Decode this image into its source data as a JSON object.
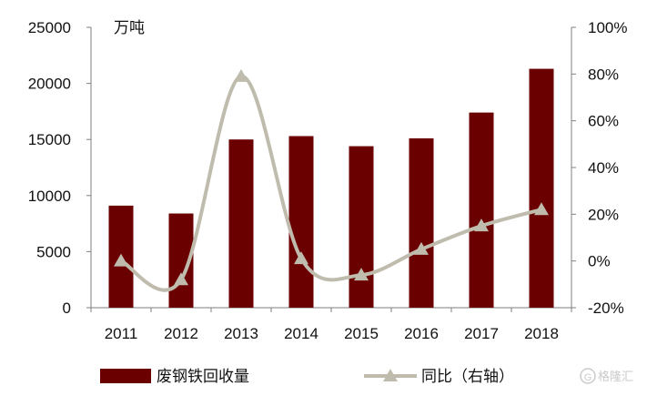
{
  "chart_data": {
    "type": "bar+line",
    "unit_label": "万吨",
    "categories": [
      "2011",
      "2012",
      "2013",
      "2014",
      "2015",
      "2016",
      "2017",
      "2018"
    ],
    "series": [
      {
        "name": "废钢铁回收量",
        "type": "bar",
        "axis": "left",
        "color": "#6b0000",
        "values": [
          9100,
          8400,
          15000,
          15300,
          14400,
          15100,
          17400,
          21300
        ]
      },
      {
        "name": "同比（右轴）",
        "type": "line",
        "axis": "right",
        "color": "#bfbcae",
        "marker": "triangle",
        "values": [
          0,
          -8,
          79,
          1,
          -6,
          5,
          15,
          22
        ]
      }
    ],
    "ylim_left": [
      0,
      25000
    ],
    "yticks_left": [
      "25000",
      "20000",
      "15000",
      "10000",
      "5000",
      "0"
    ],
    "ylim_right": [
      -20,
      100
    ],
    "yticks_right": [
      "100%",
      "80%",
      "60%",
      "40%",
      "20%",
      "0%",
      "-20%"
    ],
    "grid": false,
    "legend_position": "bottom"
  },
  "watermark": {
    "text": "格隆汇",
    "icon": "g-logo-icon"
  }
}
